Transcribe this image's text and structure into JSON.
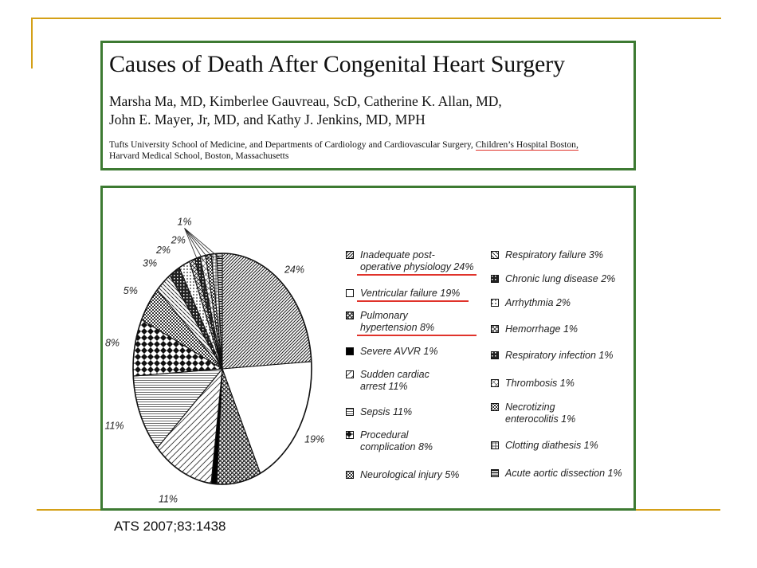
{
  "paper": {
    "title": "Causes of Death After Congenital Heart Surgery",
    "authors_line1": "Marsha Ma, MD, Kimberlee Gauvreau, ScD, Catherine K. Allan, MD,",
    "authors_line2": "John E. Mayer, Jr, MD, and Kathy J. Jenkins, MD, MPH",
    "affiliation_part1": "Tufts University School of Medicine, and Departments of Cardiology and Cardiovascular Surgery, ",
    "affiliation_highlight": "Children’s Hospital Boston,",
    "affiliation_part2": "Harvard Medical School, Boston, Massachusetts"
  },
  "citation": "ATS 2007;83:1438",
  "colors": {
    "frame_green": "#3d7a32",
    "accent_gold": "#d4a017",
    "underline_red": "#e0332b"
  },
  "chart_data": {
    "type": "pie",
    "title": "",
    "slices": [
      {
        "label": "Inadequate post-operative physiology 24%",
        "display": "24%",
        "value": 24,
        "pattern": "diag-dense"
      },
      {
        "label": "Ventricular failure 19%",
        "display": "19%",
        "value": 19,
        "pattern": "white"
      },
      {
        "label": "Pulmonary hypertension 8%",
        "display": "8%",
        "value": 8,
        "pattern": "crosshatch"
      },
      {
        "label": "Severe AVVR 1%",
        "display": "1%",
        "value": 1,
        "pattern": "black"
      },
      {
        "label": "Sudden cardiac arrest 11%",
        "display": "11%",
        "value": 11,
        "pattern": "diag-sparse"
      },
      {
        "label": "Sepsis 11%",
        "display": "11%",
        "value": 11,
        "pattern": "horizontal"
      },
      {
        "label": "Procedural complication 8%",
        "display": "8%",
        "value": 8,
        "pattern": "diamonds"
      },
      {
        "label": "Neurological injury 5%",
        "display": "5%",
        "value": 5,
        "pattern": "dark-check"
      },
      {
        "label": "Respiratory failure 3%",
        "display": "3%",
        "value": 3,
        "pattern": "back-diag"
      },
      {
        "label": "Chronic lung disease 2%",
        "display": "2%",
        "value": 2,
        "pattern": "dark-grid"
      },
      {
        "label": "Arrhythmia 2%",
        "display": "2%",
        "value": 2,
        "pattern": "dots"
      },
      {
        "label": "Hemorrhage 1%",
        "display": "1%",
        "value": 1,
        "pattern": "xhatch"
      },
      {
        "label": "Respiratory infection 1%",
        "display": "1%",
        "value": 1,
        "pattern": "dark-grid"
      },
      {
        "label": "Thrombosis 1%",
        "display": "1%",
        "value": 1,
        "pattern": "xhatch-light"
      },
      {
        "label": "Necrotizing enterocolitis 1%",
        "display": "1%",
        "value": 1,
        "pattern": "dark-check"
      },
      {
        "label": "Clotting diathesis 1%",
        "display": "1%",
        "value": 1,
        "pattern": "grid"
      },
      {
        "label": "Acute aortic dissection 1%",
        "display": "1%",
        "value": 1,
        "pattern": "horizontal-dark"
      }
    ],
    "slice_labels": [
      {
        "text": "24%"
      },
      {
        "text": "19%"
      },
      {
        "text": "8%"
      },
      {
        "text": "1%"
      },
      {
        "text": "11%"
      },
      {
        "text": "11%"
      },
      {
        "text": "8%"
      },
      {
        "text": "5%"
      },
      {
        "text": "3%"
      },
      {
        "text": "2%"
      },
      {
        "text": "2%"
      },
      {
        "text": "1%"
      }
    ],
    "legend": {
      "left": [
        {
          "line1": "Inadequate post-",
          "line2": "operative physiology 24%",
          "pattern": "diag-dense",
          "underlined": true
        },
        {
          "line1": "Ventricular failure 19%",
          "line2": "",
          "pattern": "white",
          "underlined": true
        },
        {
          "line1": "Pulmonary",
          "line2": "hypertension 8%",
          "pattern": "crosshatch",
          "underlined": true
        },
        {
          "line1": "Severe AVVR 1%",
          "line2": "",
          "pattern": "black",
          "underlined": false
        },
        {
          "line1": "Sudden cardiac",
          "line2": "arrest 11%",
          "pattern": "diag-sparse",
          "underlined": false
        },
        {
          "line1": "Sepsis 11%",
          "line2": "",
          "pattern": "horizontal",
          "underlined": false
        },
        {
          "line1": "Procedural",
          "line2": "complication 8%",
          "pattern": "diamonds",
          "underlined": false
        },
        {
          "line1": "Neurological injury 5%",
          "line2": "",
          "pattern": "dark-check",
          "underlined": false
        }
      ],
      "right": [
        {
          "line1": "Respiratory failure 3%",
          "line2": "",
          "pattern": "back-diag"
        },
        {
          "line1": "Chronic lung disease 2%",
          "line2": "",
          "pattern": "dark-grid"
        },
        {
          "line1": "Arrhythmia 2%",
          "line2": "",
          "pattern": "dots"
        },
        {
          "line1": "Hemorrhage 1%",
          "line2": "",
          "pattern": "xhatch"
        },
        {
          "line1": "Respiratory infection 1%",
          "line2": "",
          "pattern": "dark-grid"
        },
        {
          "line1": "Thrombosis 1%",
          "line2": "",
          "pattern": "xhatch-light"
        },
        {
          "line1": "Necrotizing",
          "line2": "enterocolitis 1%",
          "pattern": "dark-check"
        },
        {
          "line1": "Clotting diathesis 1%",
          "line2": "",
          "pattern": "grid"
        },
        {
          "line1": "Acute aortic dissection 1%",
          "line2": "",
          "pattern": "horizontal-dark"
        }
      ]
    }
  }
}
